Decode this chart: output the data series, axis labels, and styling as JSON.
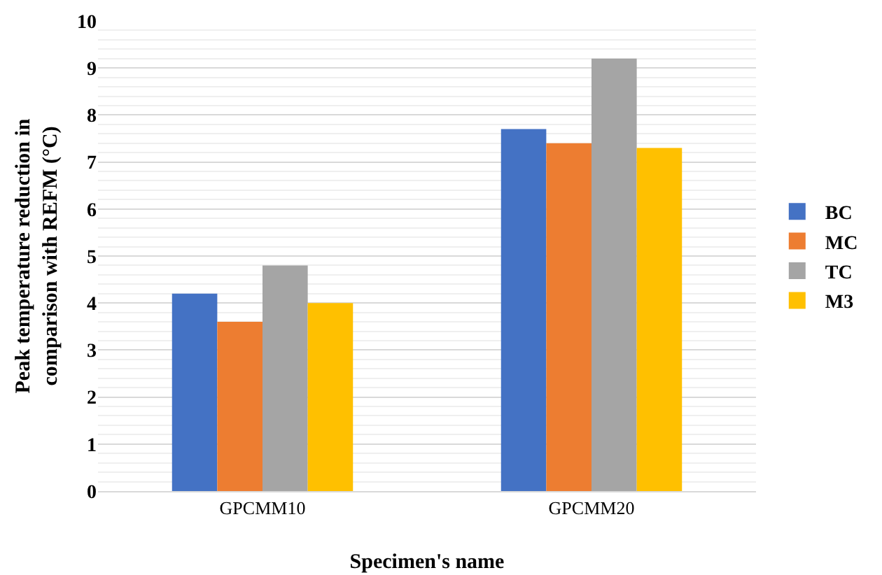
{
  "chart_data": {
    "type": "bar",
    "xlabel": "Specimen's name",
    "ylabel": "Peak temperature reduction in comparison with REFM (°C)",
    "categories": [
      "GPCMM10",
      "GPCMM20"
    ],
    "series": [
      {
        "name": "BC",
        "color": "#4472c4",
        "values": [
          4.2,
          7.7
        ]
      },
      {
        "name": "MC",
        "color": "#ed7d31",
        "values": [
          3.6,
          7.4
        ]
      },
      {
        "name": "TC",
        "color": "#a5a5a5",
        "values": [
          4.8,
          9.2
        ]
      },
      {
        "name": "M3",
        "color": "#ffc000",
        "values": [
          4.0,
          7.3
        ]
      }
    ],
    "ylim": [
      0,
      10
    ],
    "yticks": [
      0,
      1,
      2,
      3,
      4,
      5,
      6,
      7,
      8,
      9,
      10
    ],
    "grid": "y",
    "legend": "right"
  }
}
